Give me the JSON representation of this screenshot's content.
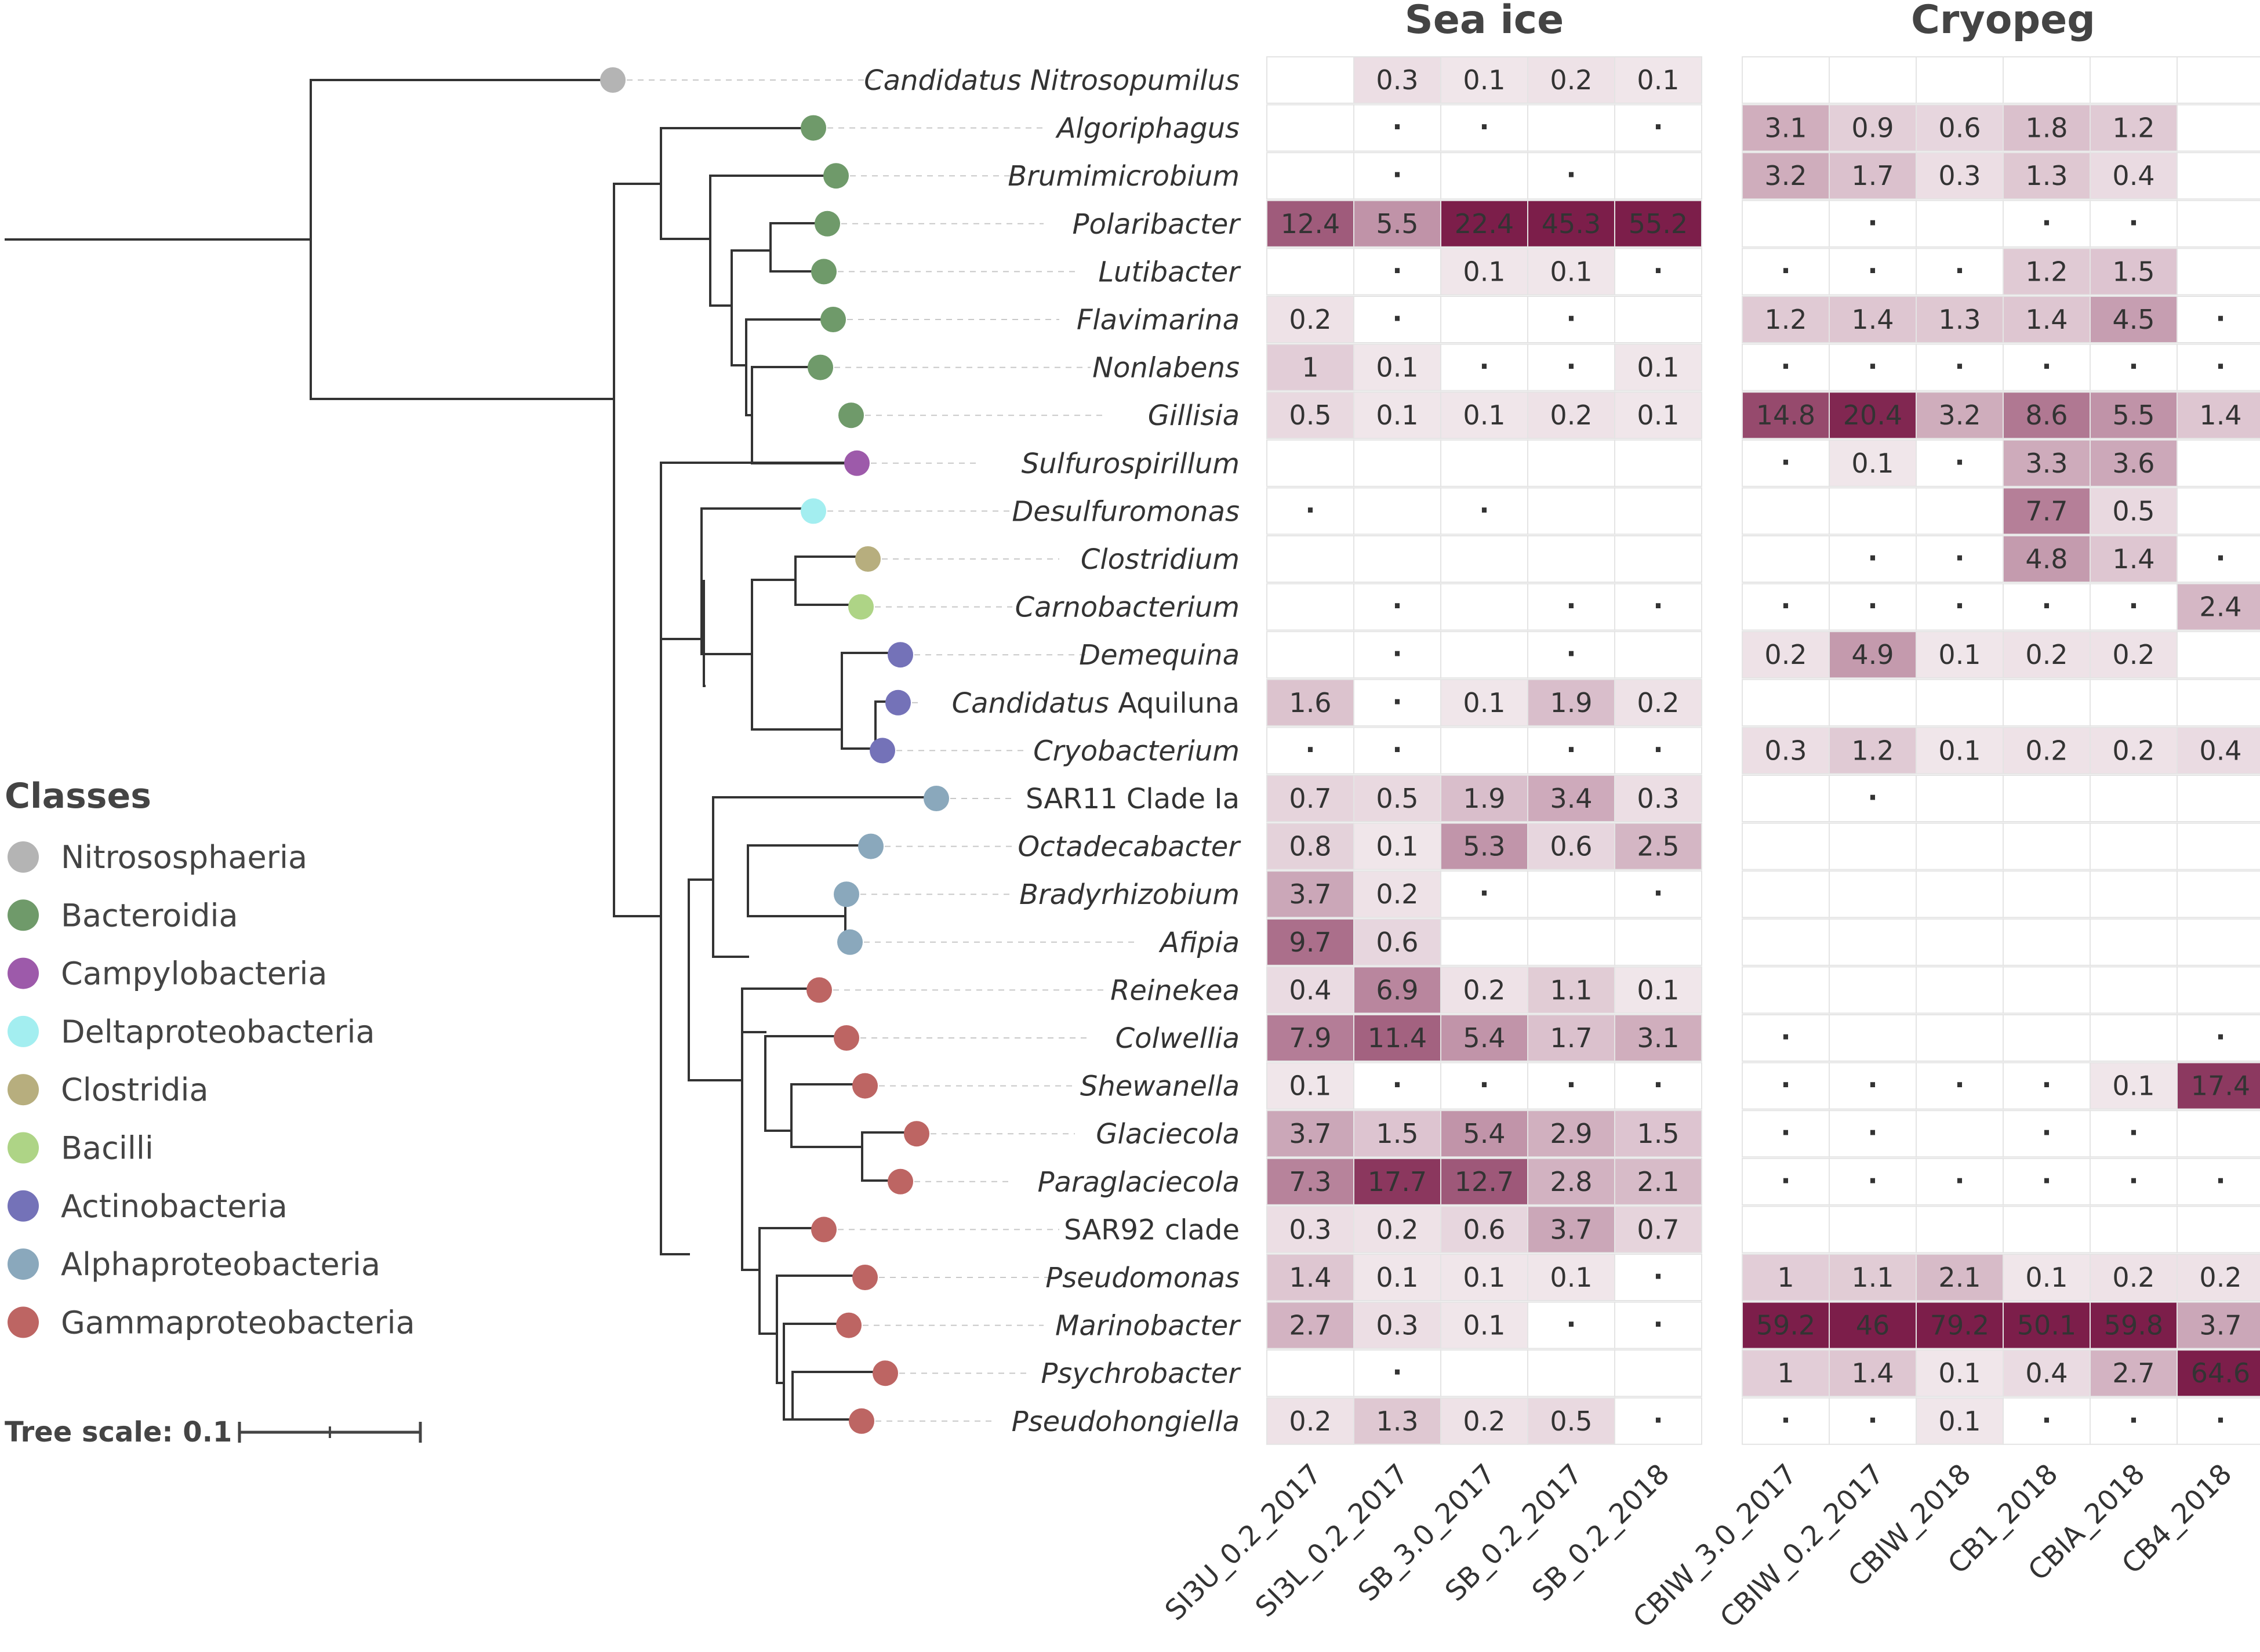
{
  "figure": {
    "panels": [
      {
        "title": "Sea ice",
        "samples": [
          "SI3U_0.2_2017",
          "SI3L_0.2_2017",
          "SB_3.0_2017",
          "SB_0.2_2017",
          "SB_0.2_2018"
        ]
      },
      {
        "title": "Cryopeg",
        "samples": [
          "CBIW_3.0_2017",
          "CBIW_0.2_2017",
          "CBIW_2018",
          "CB1_2018",
          "CBIA_2018",
          "CB4_2018"
        ]
      }
    ],
    "taxa": [
      {
        "pre": "Candidatus ",
        "name": "Nitrosopumilus",
        "italic": true,
        "class": "Nitrososphaeria"
      },
      {
        "pre": "",
        "name": "Algoriphagus",
        "italic": true,
        "class": "Bacteroidia"
      },
      {
        "pre": "",
        "name": "Brumimicrobium",
        "italic": true,
        "class": "Bacteroidia"
      },
      {
        "pre": "",
        "name": "Polaribacter",
        "italic": true,
        "class": "Bacteroidia"
      },
      {
        "pre": "",
        "name": "Lutibacter",
        "italic": true,
        "class": "Bacteroidia"
      },
      {
        "pre": "",
        "name": "Flavimarina",
        "italic": true,
        "class": "Bacteroidia"
      },
      {
        "pre": "",
        "name": "Nonlabens",
        "italic": true,
        "class": "Bacteroidia"
      },
      {
        "pre": "",
        "name": "Gillisia",
        "italic": true,
        "class": "Bacteroidia"
      },
      {
        "pre": "",
        "name": "Sulfurospirillum",
        "italic": true,
        "class": "Campylobacteria"
      },
      {
        "pre": "",
        "name": "Desulfuromonas",
        "italic": true,
        "class": "Deltaproteobacteria"
      },
      {
        "pre": "",
        "name": "Clostridium",
        "italic": true,
        "class": "Clostridia"
      },
      {
        "pre": "",
        "name": "Carnobacterium",
        "italic": true,
        "class": "Bacilli"
      },
      {
        "pre": "",
        "name": "Demequina",
        "italic": true,
        "class": "Actinobacteria"
      },
      {
        "pre": "Candidatus ",
        "name": "Aquiluna",
        "italic": false,
        "class": "Actinobacteria"
      },
      {
        "pre": "",
        "name": "Cryobacterium",
        "italic": true,
        "class": "Actinobacteria"
      },
      {
        "pre": "",
        "name": "SAR11 Clade Ia",
        "italic": false,
        "class": "Alphaproteobacteria"
      },
      {
        "pre": "",
        "name": "Octadecabacter",
        "italic": true,
        "class": "Alphaproteobacteria"
      },
      {
        "pre": "",
        "name": "Bradyrhizobium",
        "italic": true,
        "class": "Alphaproteobacteria"
      },
      {
        "pre": "",
        "name": "Afipia",
        "italic": true,
        "class": "Alphaproteobacteria"
      },
      {
        "pre": "",
        "name": "Reinekea",
        "italic": true,
        "class": "Gammaproteobacteria"
      },
      {
        "pre": "",
        "name": "Colwellia",
        "italic": true,
        "class": "Gammaproteobacteria"
      },
      {
        "pre": "",
        "name": "Shewanella",
        "italic": true,
        "class": "Gammaproteobacteria"
      },
      {
        "pre": "",
        "name": "Glaciecola",
        "italic": true,
        "class": "Gammaproteobacteria"
      },
      {
        "pre": "",
        "name": "Paraglaciecola",
        "italic": true,
        "class": "Gammaproteobacteria"
      },
      {
        "pre": "",
        "name": "SAR92 clade",
        "italic": false,
        "class": "Gammaproteobacteria"
      },
      {
        "pre": "",
        "name": "Pseudomonas",
        "italic": true,
        "class": "Gammaproteobacteria"
      },
      {
        "pre": "",
        "name": "Marinobacter",
        "italic": true,
        "class": "Gammaproteobacteria"
      },
      {
        "pre": "",
        "name": "Psychrobacter",
        "italic": true,
        "class": "Gammaproteobacteria"
      },
      {
        "pre": "",
        "name": "Pseudohongiella",
        "italic": true,
        "class": "Gammaproteobacteria"
      }
    ],
    "legend": {
      "title": "Classes",
      "items": [
        {
          "label": "Nitrososphaeria",
          "color": "#b4b4b4"
        },
        {
          "label": "Bacteroidia",
          "color": "#6f9a6a"
        },
        {
          "label": "Campylobacteria",
          "color": "#9d5aaa"
        },
        {
          "label": "Deltaproteobacteria",
          "color": "#a3eef0"
        },
        {
          "label": "Clostridia",
          "color": "#b7ae7e"
        },
        {
          "label": "Bacilli",
          "color": "#aed486"
        },
        {
          "label": "Actinobacteria",
          "color": "#7472b8"
        },
        {
          "label": "Alphaproteobacteria",
          "color": "#8aa8bc"
        },
        {
          "label": "Gammaproteobacteria",
          "color": "#bd6563"
        }
      ]
    },
    "tree_scale": {
      "label": "Tree scale: 0.1"
    },
    "heat_colors": {
      "low": "#f5eef1",
      "high": "#7c1e4a"
    },
    "trace_symbol": "·"
  },
  "chart_data": {
    "type": "heatmap",
    "note": "relative abundance (%); 't' = trace (dot shown); '' = absent",
    "rows": [
      "Candidatus Nitrosopumilus",
      "Algoriphagus",
      "Brumimicrobium",
      "Polaribacter",
      "Lutibacter",
      "Flavimarina",
      "Nonlabens",
      "Gillisia",
      "Sulfurospirillum",
      "Desulfuromonas",
      "Clostridium",
      "Carnobacterium",
      "Demequina",
      "Candidatus Aquiluna",
      "Cryobacterium",
      "SAR11 Clade Ia",
      "Octadecabacter",
      "Bradyrhizobium",
      "Afipia",
      "Reinekea",
      "Colwellia",
      "Shewanella",
      "Glaciecola",
      "Paraglaciecola",
      "SAR92 clade",
      "Pseudomonas",
      "Marinobacter",
      "Psychrobacter",
      "Pseudohongiella"
    ],
    "sea_ice": [
      [
        "",
        "0.3",
        "0.1",
        "0.2",
        "0.1"
      ],
      [
        "",
        "t",
        "t",
        "",
        "t"
      ],
      [
        "",
        "t",
        "",
        "t",
        ""
      ],
      [
        "12.4",
        "5.5",
        "22.4",
        "45.3",
        "55.2"
      ],
      [
        "",
        "t",
        "0.1",
        "0.1",
        "t"
      ],
      [
        "0.2",
        "t",
        "",
        "t",
        ""
      ],
      [
        "1",
        "0.1",
        "t",
        "t",
        "0.1"
      ],
      [
        "0.5",
        "0.1",
        "0.1",
        "0.2",
        "0.1"
      ],
      [
        "",
        "",
        "",
        "",
        ""
      ],
      [
        "t",
        "",
        "t",
        "",
        ""
      ],
      [
        "",
        "",
        "",
        "",
        ""
      ],
      [
        "",
        "t",
        "",
        "t",
        "t"
      ],
      [
        "",
        "t",
        "",
        "t",
        ""
      ],
      [
        "1.6",
        "t",
        "0.1",
        "1.9",
        "0.2"
      ],
      [
        "t",
        "t",
        "",
        "t",
        "t"
      ],
      [
        "0.7",
        "0.5",
        "1.9",
        "3.4",
        "0.3"
      ],
      [
        "0.8",
        "0.1",
        "5.3",
        "0.6",
        "2.5"
      ],
      [
        "3.7",
        "0.2",
        "t",
        "",
        "t"
      ],
      [
        "9.7",
        "0.6",
        "",
        "",
        ""
      ],
      [
        "0.4",
        "6.9",
        "0.2",
        "1.1",
        "0.1"
      ],
      [
        "7.9",
        "11.4",
        "5.4",
        "1.7",
        "3.1"
      ],
      [
        "0.1",
        "t",
        "t",
        "t",
        "t"
      ],
      [
        "3.7",
        "1.5",
        "5.4",
        "2.9",
        "1.5"
      ],
      [
        "7.3",
        "17.7",
        "12.7",
        "2.8",
        "2.1"
      ],
      [
        "0.3",
        "0.2",
        "0.6",
        "3.7",
        "0.7"
      ],
      [
        "1.4",
        "0.1",
        "0.1",
        "0.1",
        "t"
      ],
      [
        "2.7",
        "0.3",
        "0.1",
        "t",
        "t"
      ],
      [
        "",
        "t",
        "",
        "",
        ""
      ],
      [
        "0.2",
        "1.3",
        "0.2",
        "0.5",
        "t"
      ]
    ],
    "cryopeg": [
      [
        "",
        "",
        "",
        "",
        "",
        ""
      ],
      [
        "3.1",
        "0.9",
        "0.6",
        "1.8",
        "1.2",
        ""
      ],
      [
        "3.2",
        "1.7",
        "0.3",
        "1.3",
        "0.4",
        ""
      ],
      [
        "",
        "t",
        "",
        "t",
        "t",
        ""
      ],
      [
        "t",
        "t",
        "t",
        "1.2",
        "1.5",
        ""
      ],
      [
        "1.2",
        "1.4",
        "1.3",
        "1.4",
        "4.5",
        "t"
      ],
      [
        "t",
        "t",
        "t",
        "t",
        "t",
        "t"
      ],
      [
        "14.8",
        "20.4",
        "3.2",
        "8.6",
        "5.5",
        "1.4"
      ],
      [
        "t",
        "0.1",
        "t",
        "3.3",
        "3.6",
        ""
      ],
      [
        "",
        "",
        "",
        "7.7",
        "0.5",
        ""
      ],
      [
        "",
        "t",
        "t",
        "4.8",
        "1.4",
        "t"
      ],
      [
        "t",
        "t",
        "t",
        "t",
        "t",
        "2.4"
      ],
      [
        "0.2",
        "4.9",
        "0.1",
        "0.2",
        "0.2",
        ""
      ],
      [
        "",
        "",
        "",
        "",
        "",
        ""
      ],
      [
        "0.3",
        "1.2",
        "0.1",
        "0.2",
        "0.2",
        "0.4"
      ],
      [
        "",
        "t",
        "",
        "",
        "",
        ""
      ],
      [
        "",
        "",
        "",
        "",
        "",
        ""
      ],
      [
        "",
        "",
        "",
        "",
        "",
        ""
      ],
      [
        "",
        "",
        "",
        "",
        "",
        ""
      ],
      [
        "",
        "",
        "",
        "",
        "",
        ""
      ],
      [
        "t",
        "",
        "",
        "",
        "",
        "t"
      ],
      [
        "t",
        "t",
        "t",
        "t",
        "0.1",
        "17.4"
      ],
      [
        "t",
        "t",
        "",
        "t",
        "t",
        ""
      ],
      [
        "t",
        "t",
        "t",
        "t",
        "t",
        "t"
      ],
      [
        "",
        "",
        "",
        "",
        "",
        ""
      ],
      [
        "1",
        "1.1",
        "2.1",
        "0.1",
        "0.2",
        "0.2"
      ],
      [
        "59.2",
        "46",
        "79.2",
        "50.1",
        "59.8",
        "3.7"
      ],
      [
        "1",
        "1.4",
        "0.1",
        "0.4",
        "2.7",
        "64.6"
      ],
      [
        "t",
        "t",
        "0.1",
        "t",
        "t",
        "t"
      ]
    ]
  }
}
